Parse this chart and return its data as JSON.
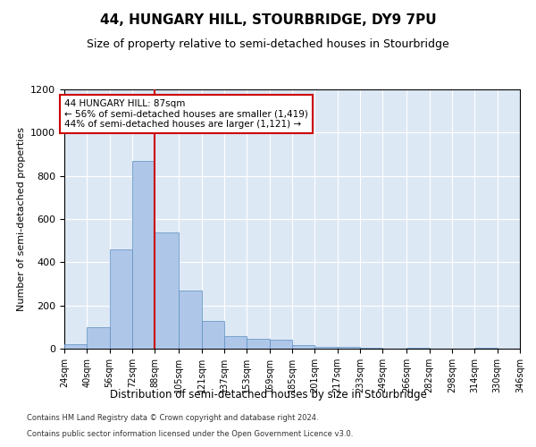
{
  "title": "44, HUNGARY HILL, STOURBRIDGE, DY9 7PU",
  "subtitle": "Size of property relative to semi-detached houses in Stourbridge",
  "xlabel": "Distribution of semi-detached houses by size in Stourbridge",
  "ylabel": "Number of semi-detached properties",
  "annotation_line1": "44 HUNGARY HILL: 87sqm",
  "annotation_line2": "← 56% of semi-detached houses are smaller (1,419)",
  "annotation_line3": "44% of semi-detached houses are larger (1,121) →",
  "bin_edges": [
    24,
    40,
    56,
    72,
    88,
    105,
    121,
    137,
    153,
    169,
    185,
    201,
    217,
    233,
    249,
    266,
    282,
    298,
    314,
    330,
    346
  ],
  "bar_heights": [
    20,
    100,
    460,
    870,
    540,
    270,
    130,
    60,
    45,
    40,
    15,
    10,
    10,
    5,
    0,
    5,
    0,
    0,
    5,
    0
  ],
  "bar_color": "#aec6e8",
  "bar_edge_color": "#5a8fc0",
  "vline_color": "#cc0000",
  "vline_x": 88,
  "annotation_box_edge": "#cc0000",
  "background_color": "#dde8f5",
  "ylim": [
    0,
    1200
  ],
  "yticks": [
    0,
    200,
    400,
    600,
    800,
    1000,
    1200
  ],
  "footer1": "Contains HM Land Registry data © Crown copyright and database right 2024.",
  "footer2": "Contains public sector information licensed under the Open Government Licence v3.0."
}
